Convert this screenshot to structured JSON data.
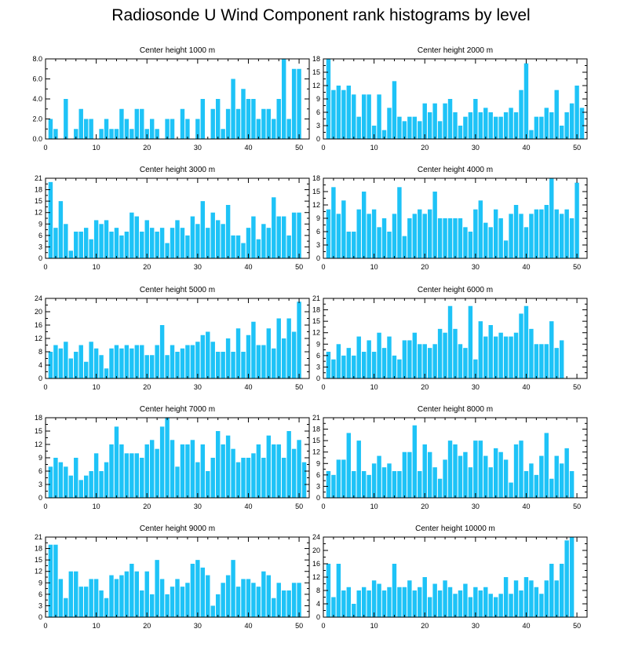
{
  "title": "Radiosonde U Wind Component rank histograms by level",
  "colors": {
    "bar": "#1ec3f7",
    "axis": "#000000"
  },
  "chart_data": [
    {
      "type": "bar",
      "title": "Center height 1000 m",
      "xlim": [
        0,
        52
      ],
      "ylim": [
        0,
        8
      ],
      "yticks": [
        0,
        2,
        4,
        6,
        8
      ],
      "ytick_labels": [
        "0.0",
        "2.0",
        "4.0",
        "6.0",
        "8.0"
      ],
      "xticks": [
        0,
        10,
        20,
        30,
        40,
        50
      ],
      "values": [
        2,
        1,
        0,
        4,
        0,
        1,
        3,
        2,
        2,
        0,
        1,
        2,
        1,
        1,
        3,
        2,
        1,
        3,
        3,
        1,
        2,
        1,
        0,
        2,
        2,
        0,
        3,
        2,
        0,
        2,
        4,
        0,
        3,
        4,
        1,
        3,
        6,
        3,
        5,
        4,
        4,
        2,
        3,
        3,
        2,
        4,
        8,
        2,
        7,
        7
      ]
    },
    {
      "type": "bar",
      "title": "Center height 2000 m",
      "xlim": [
        0,
        52
      ],
      "ylim": [
        0,
        18
      ],
      "yticks": [
        0,
        3,
        6,
        9,
        12,
        15,
        18
      ],
      "ytick_labels": [
        "0",
        "3",
        "6",
        "9",
        "12",
        "15",
        "18"
      ],
      "xticks": [
        0,
        10,
        20,
        30,
        40,
        50
      ],
      "values": [
        18,
        11,
        12,
        11,
        12,
        10,
        5,
        10,
        10,
        3,
        10,
        2,
        7,
        13,
        5,
        4,
        5,
        5,
        4,
        8,
        6,
        8,
        4,
        8,
        9,
        6,
        3,
        5,
        6,
        9,
        6,
        7,
        6,
        5,
        5,
        6,
        7,
        6,
        11,
        17,
        2,
        5,
        5,
        7,
        6,
        11,
        3,
        6,
        8,
        12,
        7
      ]
    },
    {
      "type": "bar",
      "title": "Center height 3000 m",
      "xlim": [
        0,
        52
      ],
      "ylim": [
        0,
        21
      ],
      "yticks": [
        0,
        3,
        6,
        9,
        12,
        15,
        18,
        21
      ],
      "ytick_labels": [
        "0",
        "3",
        "6",
        "9",
        "12",
        "15",
        "18",
        "21"
      ],
      "xticks": [
        0,
        10,
        20,
        30,
        40,
        50
      ],
      "values": [
        20,
        8,
        15,
        9,
        2,
        7,
        7,
        8,
        5,
        10,
        9,
        10,
        7,
        8,
        6,
        7,
        12,
        11,
        7,
        10,
        8,
        7,
        8,
        4,
        8,
        10,
        8,
        6,
        11,
        9,
        15,
        8,
        12,
        10,
        9,
        14,
        6,
        6,
        4,
        8,
        11,
        5,
        9,
        8,
        16,
        11,
        11,
        6,
        12,
        12
      ]
    },
    {
      "type": "bar",
      "title": "Center height 4000 m",
      "xlim": [
        0,
        52
      ],
      "ylim": [
        0,
        18
      ],
      "yticks": [
        0,
        3,
        6,
        9,
        12,
        15,
        18
      ],
      "ytick_labels": [
        "0",
        "3",
        "6",
        "9",
        "12",
        "15",
        "18"
      ],
      "xticks": [
        0,
        10,
        20,
        30,
        40,
        50
      ],
      "values": [
        11,
        16,
        10,
        13,
        6,
        6,
        11,
        15,
        10,
        11,
        7,
        9,
        6,
        10,
        16,
        5,
        9,
        10,
        11,
        10,
        11,
        15,
        9,
        9,
        9,
        9,
        9,
        7,
        6,
        11,
        13,
        8,
        7,
        11,
        9,
        4,
        10,
        12,
        10,
        7,
        10,
        11,
        11,
        12,
        18,
        11,
        10,
        11,
        9,
        17
      ]
    },
    {
      "type": "bar",
      "title": "Center height 5000 m",
      "xlim": [
        0,
        52
      ],
      "ylim": [
        0,
        24
      ],
      "yticks": [
        0,
        4,
        8,
        12,
        16,
        20,
        24
      ],
      "ytick_labels": [
        "0",
        "4",
        "8",
        "12",
        "16",
        "20",
        "24"
      ],
      "xticks": [
        0,
        10,
        20,
        30,
        40,
        50
      ],
      "values": [
        8,
        10,
        9,
        11,
        6,
        8,
        10,
        5,
        11,
        9,
        7,
        3,
        9,
        10,
        9,
        10,
        9,
        10,
        10,
        7,
        7,
        10,
        16,
        7,
        10,
        8,
        9,
        10,
        10,
        11,
        13,
        14,
        11,
        8,
        8,
        12,
        8,
        15,
        8,
        13,
        17,
        10,
        10,
        15,
        9,
        18,
        12,
        18,
        14,
        23
      ]
    },
    {
      "type": "bar",
      "title": "Center height 6000 m",
      "xlim": [
        0,
        52
      ],
      "ylim": [
        0,
        21
      ],
      "yticks": [
        0,
        3,
        6,
        9,
        12,
        15,
        18,
        21
      ],
      "ytick_labels": [
        "0",
        "3",
        "6",
        "9",
        "12",
        "15",
        "18",
        "21"
      ],
      "xticks": [
        0,
        10,
        20,
        30,
        40,
        50
      ],
      "values": [
        7,
        5,
        9,
        6,
        8,
        6,
        11,
        7,
        10,
        7,
        12,
        8,
        11,
        6,
        5,
        10,
        10,
        12,
        9,
        9,
        8,
        9,
        13,
        12,
        19,
        13,
        9,
        8,
        19,
        5,
        15,
        11,
        14,
        11,
        12,
        11,
        11,
        12,
        17,
        19,
        13,
        9,
        9,
        9,
        15,
        8,
        10
      ]
    },
    {
      "type": "bar",
      "title": "Center height 7000 m",
      "xlim": [
        0,
        52
      ],
      "ylim": [
        0,
        18
      ],
      "yticks": [
        0,
        3,
        6,
        9,
        12,
        15,
        18
      ],
      "ytick_labels": [
        "0",
        "3",
        "6",
        "9",
        "12",
        "15",
        "18"
      ],
      "xticks": [
        0,
        10,
        20,
        30,
        40,
        50
      ],
      "values": [
        7,
        9,
        8,
        7,
        5,
        9,
        4,
        5,
        6,
        10,
        6,
        8,
        12,
        16,
        12,
        10,
        10,
        10,
        9,
        12,
        13,
        11,
        16,
        18,
        13,
        7,
        12,
        12,
        13,
        8,
        12,
        6,
        9,
        15,
        12,
        14,
        11,
        8,
        9,
        9,
        10,
        12,
        9,
        14,
        12,
        12,
        9,
        15,
        11,
        13,
        8
      ]
    },
    {
      "type": "bar",
      "title": "Center height 8000 m",
      "xlim": [
        0,
        52
      ],
      "ylim": [
        0,
        21
      ],
      "yticks": [
        0,
        3,
        6,
        9,
        12,
        15,
        18,
        21
      ],
      "ytick_labels": [
        "0",
        "3",
        "6",
        "9",
        "12",
        "15",
        "18",
        "21"
      ],
      "xticks": [
        0,
        10,
        20,
        30,
        40,
        50
      ],
      "values": [
        7,
        6,
        10,
        10,
        17,
        7,
        15,
        7,
        6,
        9,
        11,
        8,
        9,
        7,
        7,
        12,
        12,
        19,
        7,
        14,
        12,
        8,
        5,
        10,
        15,
        14,
        11,
        12,
        8,
        15,
        15,
        11,
        8,
        13,
        12,
        10,
        4,
        14,
        15,
        7,
        9,
        6,
        11,
        17,
        5,
        11,
        9,
        13,
        7
      ]
    },
    {
      "type": "bar",
      "title": "Center height 9000 m",
      "xlim": [
        0,
        52
      ],
      "ylim": [
        0,
        21
      ],
      "yticks": [
        0,
        3,
        6,
        9,
        12,
        15,
        18,
        21
      ],
      "ytick_labels": [
        "0",
        "3",
        "6",
        "9",
        "12",
        "15",
        "18",
        "21"
      ],
      "xticks": [
        0,
        10,
        20,
        30,
        40,
        50
      ],
      "values": [
        19,
        19,
        10,
        5,
        12,
        12,
        8,
        8,
        10,
        10,
        7,
        5,
        11,
        10,
        11,
        12,
        14,
        12,
        7,
        12,
        6,
        15,
        10,
        6,
        8,
        10,
        8,
        9,
        14,
        15,
        13,
        11,
        3,
        6,
        9,
        11,
        15,
        8,
        10,
        10,
        9,
        8,
        12,
        11,
        5,
        9,
        7,
        7,
        9,
        9
      ]
    },
    {
      "type": "bar",
      "title": "Center height 10000 m",
      "xlim": [
        0,
        52
      ],
      "ylim": [
        0,
        24
      ],
      "yticks": [
        0,
        4,
        8,
        12,
        16,
        20,
        24
      ],
      "ytick_labels": [
        "0",
        "4",
        "8",
        "12",
        "16",
        "20",
        "24"
      ],
      "xticks": [
        0,
        10,
        20,
        30,
        40,
        50
      ],
      "values": [
        16,
        6,
        16,
        8,
        9,
        4,
        8,
        9,
        8,
        11,
        10,
        8,
        9,
        16,
        9,
        9,
        11,
        8,
        9,
        12,
        6,
        10,
        8,
        11,
        9,
        7,
        8,
        10,
        6,
        9,
        8,
        9,
        7,
        6,
        7,
        12,
        7,
        11,
        8,
        12,
        11,
        9,
        7,
        11,
        16,
        11,
        16,
        23,
        24
      ]
    }
  ]
}
